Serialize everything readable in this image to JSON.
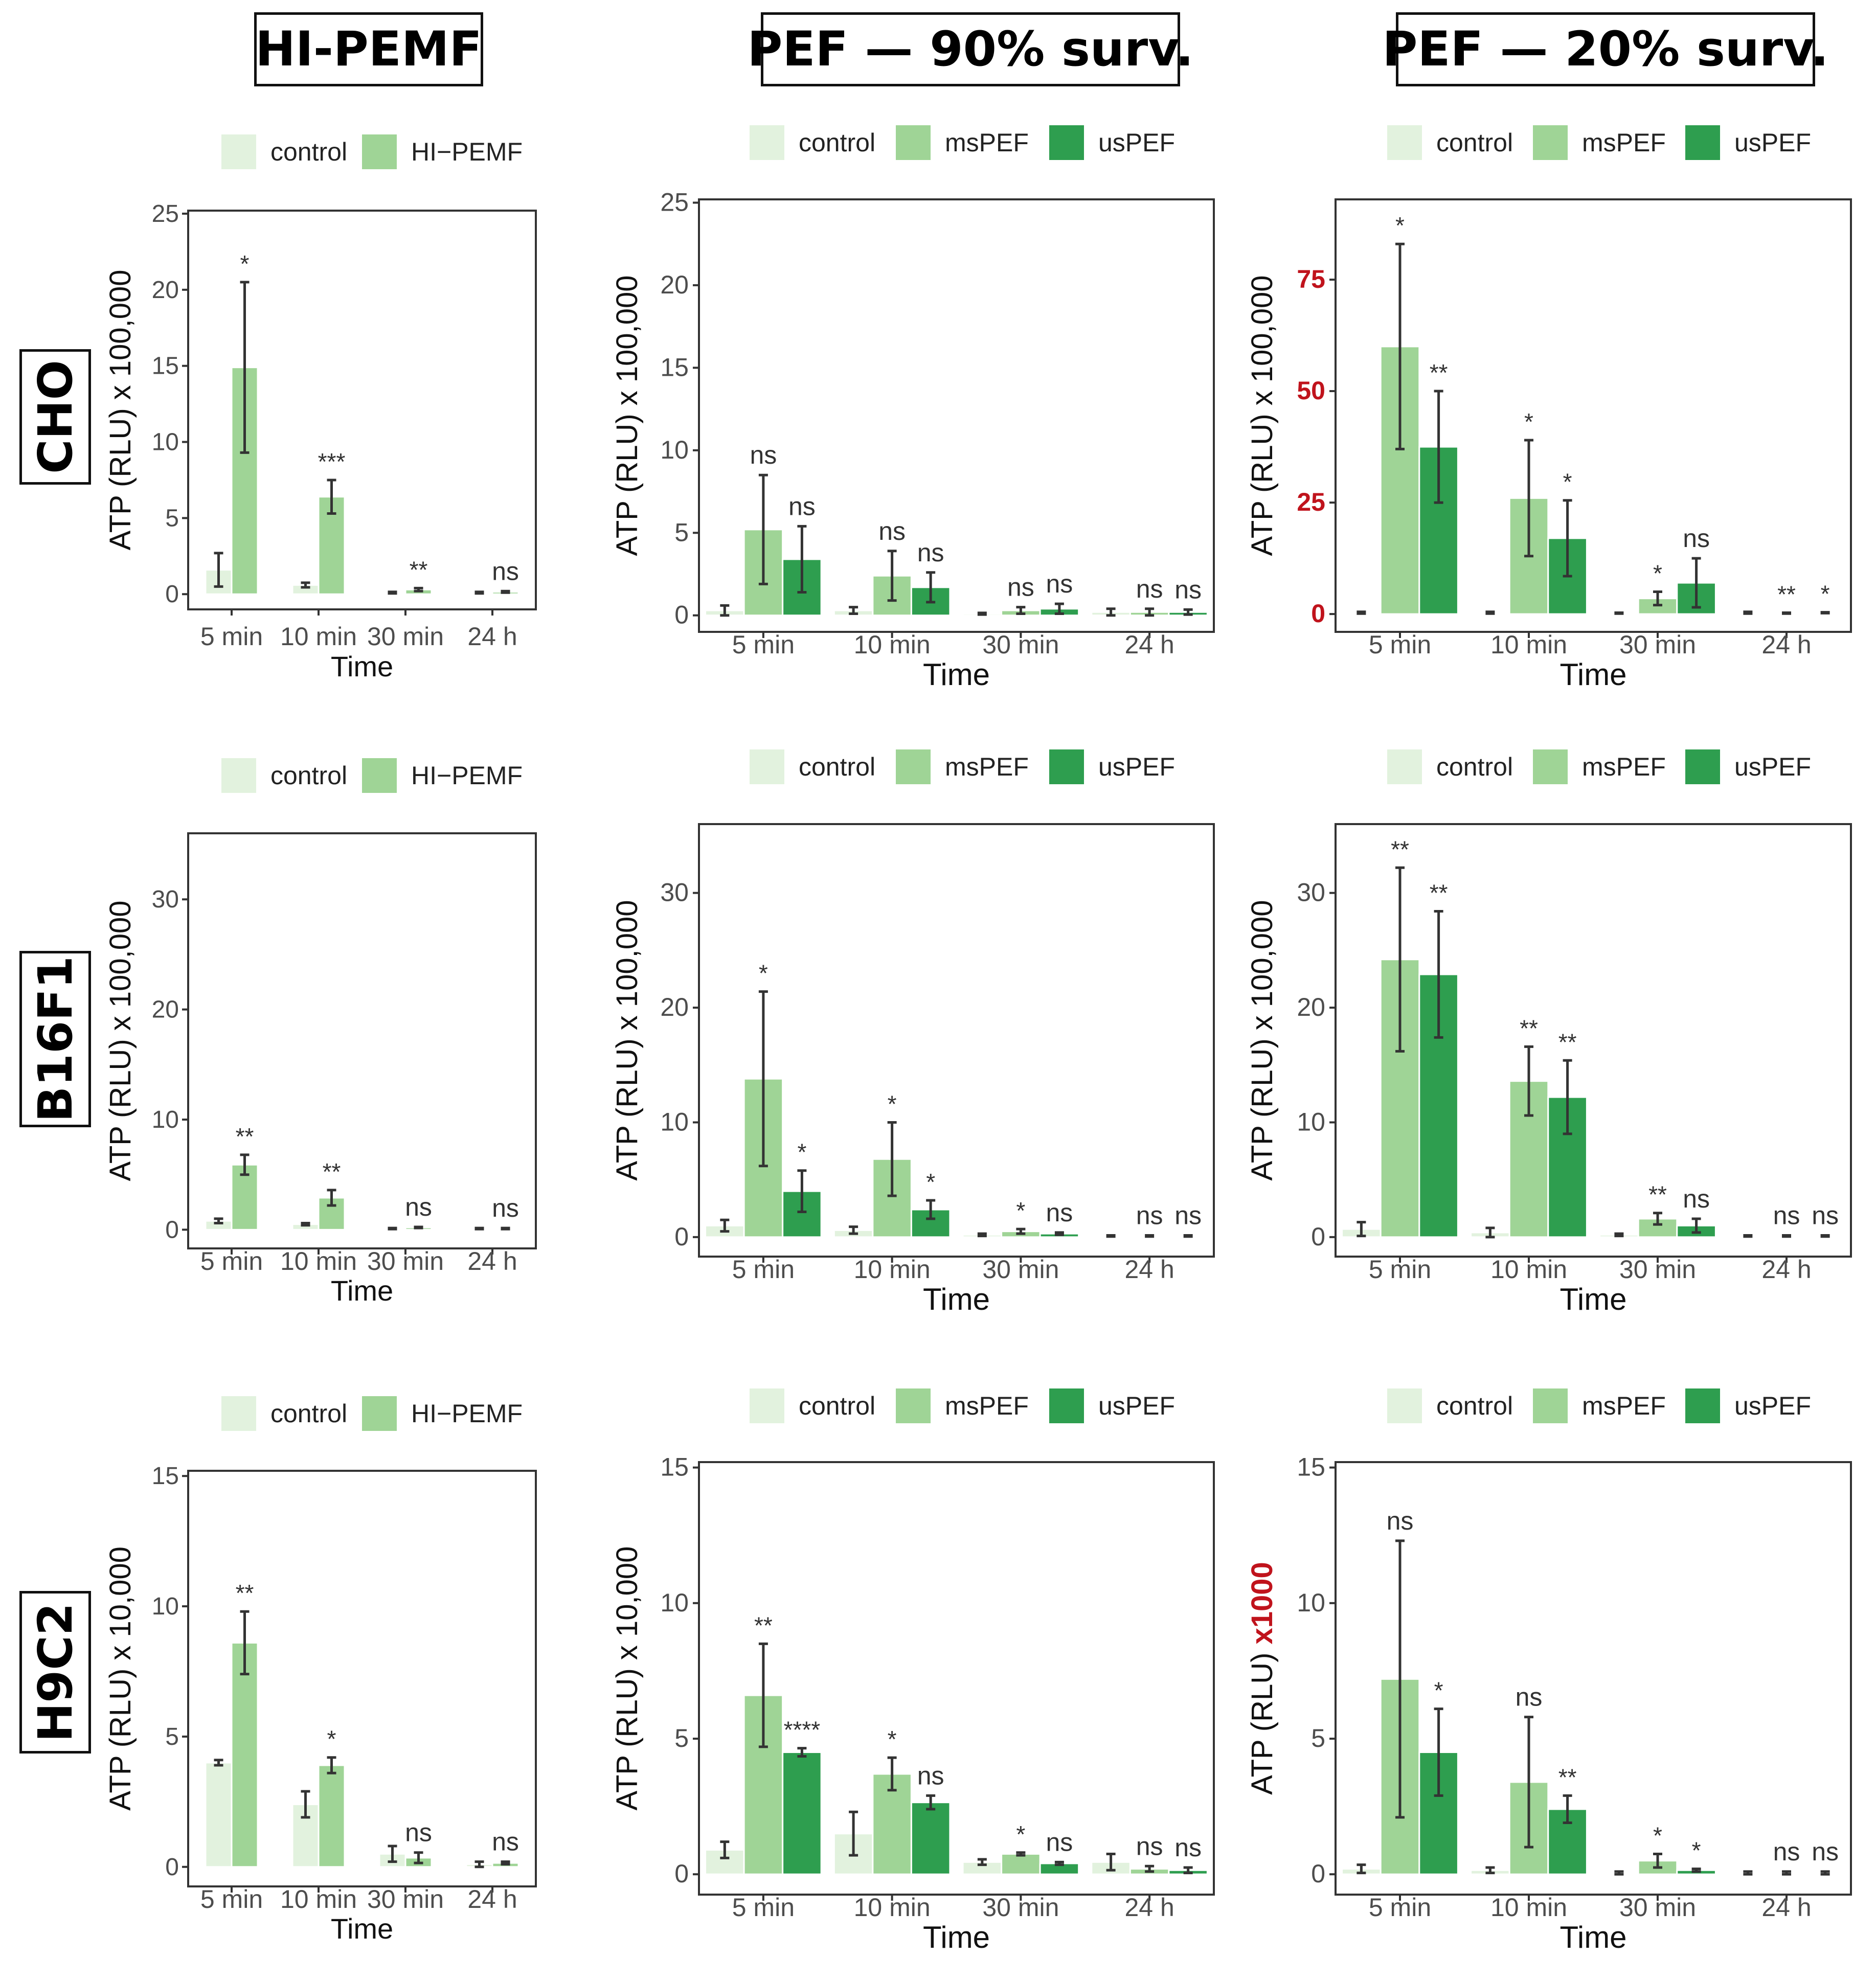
{
  "column_titles": [
    "HI-PEMF",
    "PEF — 90% surv.",
    "PEF — 20% surv."
  ],
  "row_labels": [
    "CHO",
    "B16F1",
    "H9C2"
  ],
  "colors": {
    "control": "#e2f2de",
    "treat": "#9fd496",
    "us": "#2e9e4f",
    "bar_border": "#ffffff",
    "error": "#333333",
    "highlight": "#c0131c"
  },
  "chart_data": [
    {
      "id": "cho-hipemf",
      "type": "bar",
      "title": "",
      "xlabel": "Time",
      "ylabel_main": "ATP (RLU)",
      "ylabel_scale": " x 100,000",
      "scale_highlight": false,
      "legend": [
        "control",
        "HI−PEMF"
      ],
      "categories": [
        "5 min",
        "10 min",
        "30 min",
        "24 h"
      ],
      "ylim": [
        -1,
        25.2
      ],
      "yticks": [
        0,
        5,
        10,
        15,
        20,
        25
      ],
      "highlight_ticks": false,
      "series": [
        {
          "name": "control",
          "values": [
            1.6,
            0.6,
            0.1,
            0.1
          ],
          "errors": [
            1.1,
            0.15,
            0.05,
            0.05
          ]
        },
        {
          "name": "HI−PEMF",
          "values": [
            14.9,
            6.4,
            0.3,
            0.15
          ],
          "errors": [
            5.6,
            1.1,
            0.1,
            0.05
          ]
        }
      ],
      "annotations": [
        "*",
        "***",
        "**",
        "ns"
      ]
    },
    {
      "id": "cho-pef90",
      "type": "bar",
      "title": "",
      "xlabel": "Time",
      "ylabel_main": "ATP (RLU)",
      "ylabel_scale": " x 100,000",
      "scale_highlight": false,
      "legend": [
        "control",
        "msPEF",
        "usPEF"
      ],
      "categories": [
        "5 min",
        "10 min",
        "30 min",
        "24 h"
      ],
      "ylim": [
        -1,
        25.2
      ],
      "yticks": [
        0,
        5,
        10,
        15,
        20,
        25
      ],
      "highlight_ticks": false,
      "series": [
        {
          "name": "control",
          "values": [
            0.3,
            0.3,
            0.1,
            0.2
          ],
          "errors": [
            0.3,
            0.2,
            0.05,
            0.2
          ]
        },
        {
          "name": "msPEF",
          "values": [
            5.2,
            2.4,
            0.3,
            0.2
          ],
          "errors": [
            3.3,
            1.5,
            0.2,
            0.2
          ]
        },
        {
          "name": "usPEF",
          "values": [
            3.4,
            1.7,
            0.4,
            0.2
          ],
          "errors": [
            2.0,
            0.9,
            0.3,
            0.15
          ]
        }
      ],
      "annotations": [
        "ns",
        "ns",
        "ns",
        "ns",
        "ns",
        "ns",
        "ns",
        "ns"
      ]
    },
    {
      "id": "cho-pef20",
      "type": "bar",
      "title": "",
      "xlabel": "Time",
      "ylabel_main": "ATP (RLU)",
      "ylabel_scale": " x 100,000",
      "scale_highlight": false,
      "legend": [
        "control",
        "msPEF",
        "usPEF"
      ],
      "categories": [
        "5 min",
        "10 min",
        "30 min",
        "24 h"
      ],
      "ylim": [
        -4,
        93
      ],
      "yticks": [
        0,
        25,
        50,
        75
      ],
      "highlight_ticks": true,
      "series": [
        {
          "name": "control",
          "values": [
            0.3,
            0.3,
            0.2,
            0.3
          ],
          "errors": [
            0.2,
            0.2,
            0.1,
            0.2
          ]
        },
        {
          "name": "msPEF",
          "values": [
            60,
            26,
            3.5,
            0.2
          ],
          "errors": [
            23,
            13,
            1.5,
            0.1
          ]
        },
        {
          "name": "usPEF",
          "values": [
            37.5,
            17,
            7,
            0.3
          ],
          "errors": [
            12.5,
            8.5,
            5.5,
            0.1
          ]
        }
      ],
      "annotations": [
        "*",
        "**",
        "*",
        "*",
        "*",
        "ns",
        "**",
        "*"
      ]
    },
    {
      "id": "b16-hipemf",
      "type": "bar",
      "title": "",
      "xlabel": "Time",
      "ylabel_main": "ATP (RLU)",
      "ylabel_scale": " x 100,000",
      "scale_highlight": false,
      "legend": [
        "control",
        "HI−PEMF"
      ],
      "categories": [
        "5 min",
        "10 min",
        "30 min",
        "24 h"
      ],
      "ylim": [
        -1.7,
        36
      ],
      "yticks": [
        0,
        10,
        20,
        30
      ],
      "highlight_ticks": false,
      "series": [
        {
          "name": "control",
          "values": [
            0.8,
            0.5,
            0.1,
            0.1
          ],
          "errors": [
            0.2,
            0.1,
            0.05,
            0.05
          ]
        },
        {
          "name": "HI−PEMF",
          "values": [
            5.9,
            2.9,
            0.2,
            0.1
          ],
          "errors": [
            0.9,
            0.7,
            0.05,
            0.05
          ]
        }
      ],
      "annotations": [
        "**",
        "**",
        "ns",
        "ns"
      ]
    },
    {
      "id": "b16-pef90",
      "type": "bar",
      "title": "",
      "xlabel": "Time",
      "ylabel_main": "ATP (RLU)",
      "ylabel_scale": " x 100,000",
      "scale_highlight": false,
      "legend": [
        "control",
        "msPEF",
        "usPEF"
      ],
      "categories": [
        "5 min",
        "10 min",
        "30 min",
        "24 h"
      ],
      "ylim": [
        -1.7,
        36
      ],
      "yticks": [
        0,
        10,
        20,
        30
      ],
      "highlight_ticks": false,
      "series": [
        {
          "name": "control",
          "values": [
            1.0,
            0.6,
            0.2,
            0.1
          ],
          "errors": [
            0.5,
            0.3,
            0.1,
            0.05
          ]
        },
        {
          "name": "msPEF",
          "values": [
            13.8,
            6.8,
            0.5,
            0.1
          ],
          "errors": [
            7.6,
            3.2,
            0.2,
            0.05
          ]
        },
        {
          "name": "usPEF",
          "values": [
            4.0,
            2.4,
            0.3,
            0.1
          ],
          "errors": [
            1.8,
            0.8,
            0.1,
            0.05
          ]
        }
      ],
      "annotations": [
        "*",
        "*",
        "*",
        "*",
        "*",
        "ns",
        "ns",
        "ns"
      ]
    },
    {
      "id": "b16-pef20",
      "type": "bar",
      "title": "",
      "xlabel": "Time",
      "ylabel_main": "ATP (RLU)",
      "ylabel_scale": " x 100,000",
      "scale_highlight": false,
      "legend": [
        "control",
        "msPEF",
        "usPEF"
      ],
      "categories": [
        "5 min",
        "10 min",
        "30 min",
        "24 h"
      ],
      "ylim": [
        -1.7,
        36
      ],
      "yticks": [
        0,
        10,
        20,
        30
      ],
      "highlight_ticks": false,
      "series": [
        {
          "name": "control",
          "values": [
            0.7,
            0.4,
            0.2,
            0.1
          ],
          "errors": [
            0.6,
            0.4,
            0.1,
            0.05
          ]
        },
        {
          "name": "msPEF",
          "values": [
            24.2,
            13.6,
            1.6,
            0.1
          ],
          "errors": [
            8.0,
            3.0,
            0.5,
            0.05
          ]
        },
        {
          "name": "usPEF",
          "values": [
            22.9,
            12.2,
            1.0,
            0.1
          ],
          "errors": [
            5.5,
            3.2,
            0.6,
            0.05
          ]
        }
      ],
      "annotations": [
        "**",
        "**",
        "**",
        "**",
        "**",
        "ns",
        "ns",
        "ns"
      ]
    },
    {
      "id": "h9c2-hipemf",
      "type": "bar",
      "title": "",
      "xlabel": "Time",
      "ylabel_main": "ATP (RLU)",
      "ylabel_scale": " x 10,000",
      "scale_highlight": false,
      "legend": [
        "control",
        "HI−PEMF"
      ],
      "categories": [
        "5 min",
        "10 min",
        "30 min",
        "24 h"
      ],
      "ylim": [
        -0.75,
        15.2
      ],
      "yticks": [
        0,
        5,
        10,
        15
      ],
      "highlight_ticks": false,
      "series": [
        {
          "name": "control",
          "values": [
            4.0,
            2.4,
            0.5,
            0.1
          ],
          "errors": [
            0.1,
            0.5,
            0.3,
            0.1
          ]
        },
        {
          "name": "HI−PEMF",
          "values": [
            8.6,
            3.9,
            0.35,
            0.15
          ],
          "errors": [
            1.2,
            0.3,
            0.2,
            0.05
          ]
        }
      ],
      "annotations": [
        "**",
        "*",
        "ns",
        "ns"
      ]
    },
    {
      "id": "h9c2-pef90",
      "type": "bar",
      "title": "",
      "xlabel": "Time",
      "ylabel_main": "ATP (RLU)",
      "ylabel_scale": " x 10,000",
      "scale_highlight": false,
      "legend": [
        "control",
        "msPEF",
        "usPEF"
      ],
      "categories": [
        "5 min",
        "10 min",
        "30 min",
        "24 h"
      ],
      "ylim": [
        -0.75,
        15.2
      ],
      "yticks": [
        0,
        5,
        10,
        15
      ],
      "highlight_ticks": false,
      "series": [
        {
          "name": "control",
          "values": [
            0.9,
            1.5,
            0.45,
            0.45
          ],
          "errors": [
            0.3,
            0.8,
            0.1,
            0.3
          ]
        },
        {
          "name": "msPEF",
          "values": [
            6.6,
            3.7,
            0.75,
            0.2
          ],
          "errors": [
            1.9,
            0.6,
            0.05,
            0.1
          ]
        },
        {
          "name": "usPEF",
          "values": [
            4.5,
            2.65,
            0.4,
            0.15
          ],
          "errors": [
            0.15,
            0.25,
            0.05,
            0.1
          ]
        }
      ],
      "annotations": [
        "**",
        "****",
        "*",
        "ns",
        "*",
        "ns",
        "ns",
        "ns"
      ]
    },
    {
      "id": "h9c2-pef20",
      "type": "bar",
      "title": "",
      "xlabel": "Time",
      "ylabel_main": "ATP (RLU)",
      "ylabel_scale": " x1000",
      "scale_highlight": true,
      "legend": [
        "control",
        "msPEF",
        "usPEF"
      ],
      "categories": [
        "5 min",
        "10 min",
        "30 min",
        "24 h"
      ],
      "ylim": [
        -0.75,
        15.2
      ],
      "yticks": [
        0,
        5,
        10,
        15
      ],
      "highlight_ticks": false,
      "series": [
        {
          "name": "control",
          "values": [
            0.2,
            0.15,
            0.05,
            0.05
          ],
          "errors": [
            0.15,
            0.1,
            0.05,
            0.05
          ]
        },
        {
          "name": "msPEF",
          "values": [
            7.2,
            3.4,
            0.5,
            0.05
          ],
          "errors": [
            5.1,
            2.4,
            0.25,
            0.05
          ]
        },
        {
          "name": "usPEF",
          "values": [
            4.5,
            2.4,
            0.15,
            0.05
          ],
          "errors": [
            1.6,
            0.5,
            0.05,
            0.05
          ]
        }
      ],
      "annotations": [
        "ns",
        "*",
        "ns",
        "**",
        "*",
        "*",
        "ns",
        "ns"
      ]
    }
  ]
}
